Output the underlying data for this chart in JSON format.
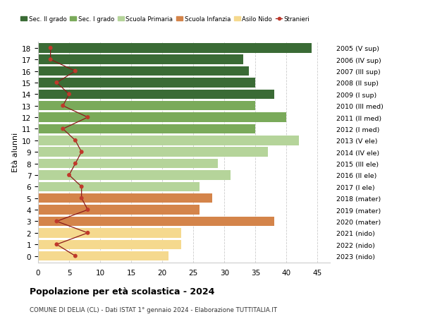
{
  "ages": [
    18,
    17,
    16,
    15,
    14,
    13,
    12,
    11,
    10,
    9,
    8,
    7,
    6,
    5,
    4,
    3,
    2,
    1,
    0
  ],
  "right_labels": [
    "2005 (V sup)",
    "2006 (IV sup)",
    "2007 (III sup)",
    "2008 (II sup)",
    "2009 (I sup)",
    "2010 (III med)",
    "2011 (II med)",
    "2012 (I med)",
    "2013 (V ele)",
    "2014 (IV ele)",
    "2015 (III ele)",
    "2016 (II ele)",
    "2017 (I ele)",
    "2018 (mater)",
    "2019 (mater)",
    "2020 (mater)",
    "2021 (nido)",
    "2022 (nido)",
    "2023 (nido)"
  ],
  "bar_values": [
    44,
    33,
    34,
    35,
    38,
    35,
    40,
    35,
    42,
    37,
    29,
    31,
    26,
    28,
    26,
    38,
    23,
    23,
    21
  ],
  "bar_colors": [
    "#3a6b35",
    "#3a6b35",
    "#3a6b35",
    "#3a6b35",
    "#3a6b35",
    "#7aaa5a",
    "#7aaa5a",
    "#7aaa5a",
    "#b5d49a",
    "#b5d49a",
    "#b5d49a",
    "#b5d49a",
    "#b5d49a",
    "#d4844a",
    "#d4844a",
    "#d4844a",
    "#f5d98e",
    "#f5d98e",
    "#f5d98e"
  ],
  "stranieri_values": [
    2,
    2,
    6,
    3,
    5,
    4,
    8,
    4,
    6,
    7,
    6,
    5,
    7,
    7,
    8,
    3,
    8,
    3,
    6
  ],
  "legend_labels": [
    "Sec. II grado",
    "Sec. I grado",
    "Scuola Primaria",
    "Scuola Infanzia",
    "Asilo Nido",
    "Stranieri"
  ],
  "legend_colors": [
    "#3a6b35",
    "#7aaa5a",
    "#b5d49a",
    "#d4844a",
    "#f5d98e",
    "#c0392b"
  ],
  "title": "Popolazione per età scolastica - 2024",
  "subtitle": "COMUNE DI DELIA (CL) - Dati ISTAT 1° gennaio 2024 - Elaborazione TUTTITALIA.IT",
  "ylabel_left": "Età alunni",
  "xlim": [
    0,
    47
  ],
  "xticks": [
    0,
    5,
    10,
    15,
    20,
    25,
    30,
    35,
    40,
    45
  ],
  "background_color": "#ffffff",
  "grid_color": "#cccccc"
}
